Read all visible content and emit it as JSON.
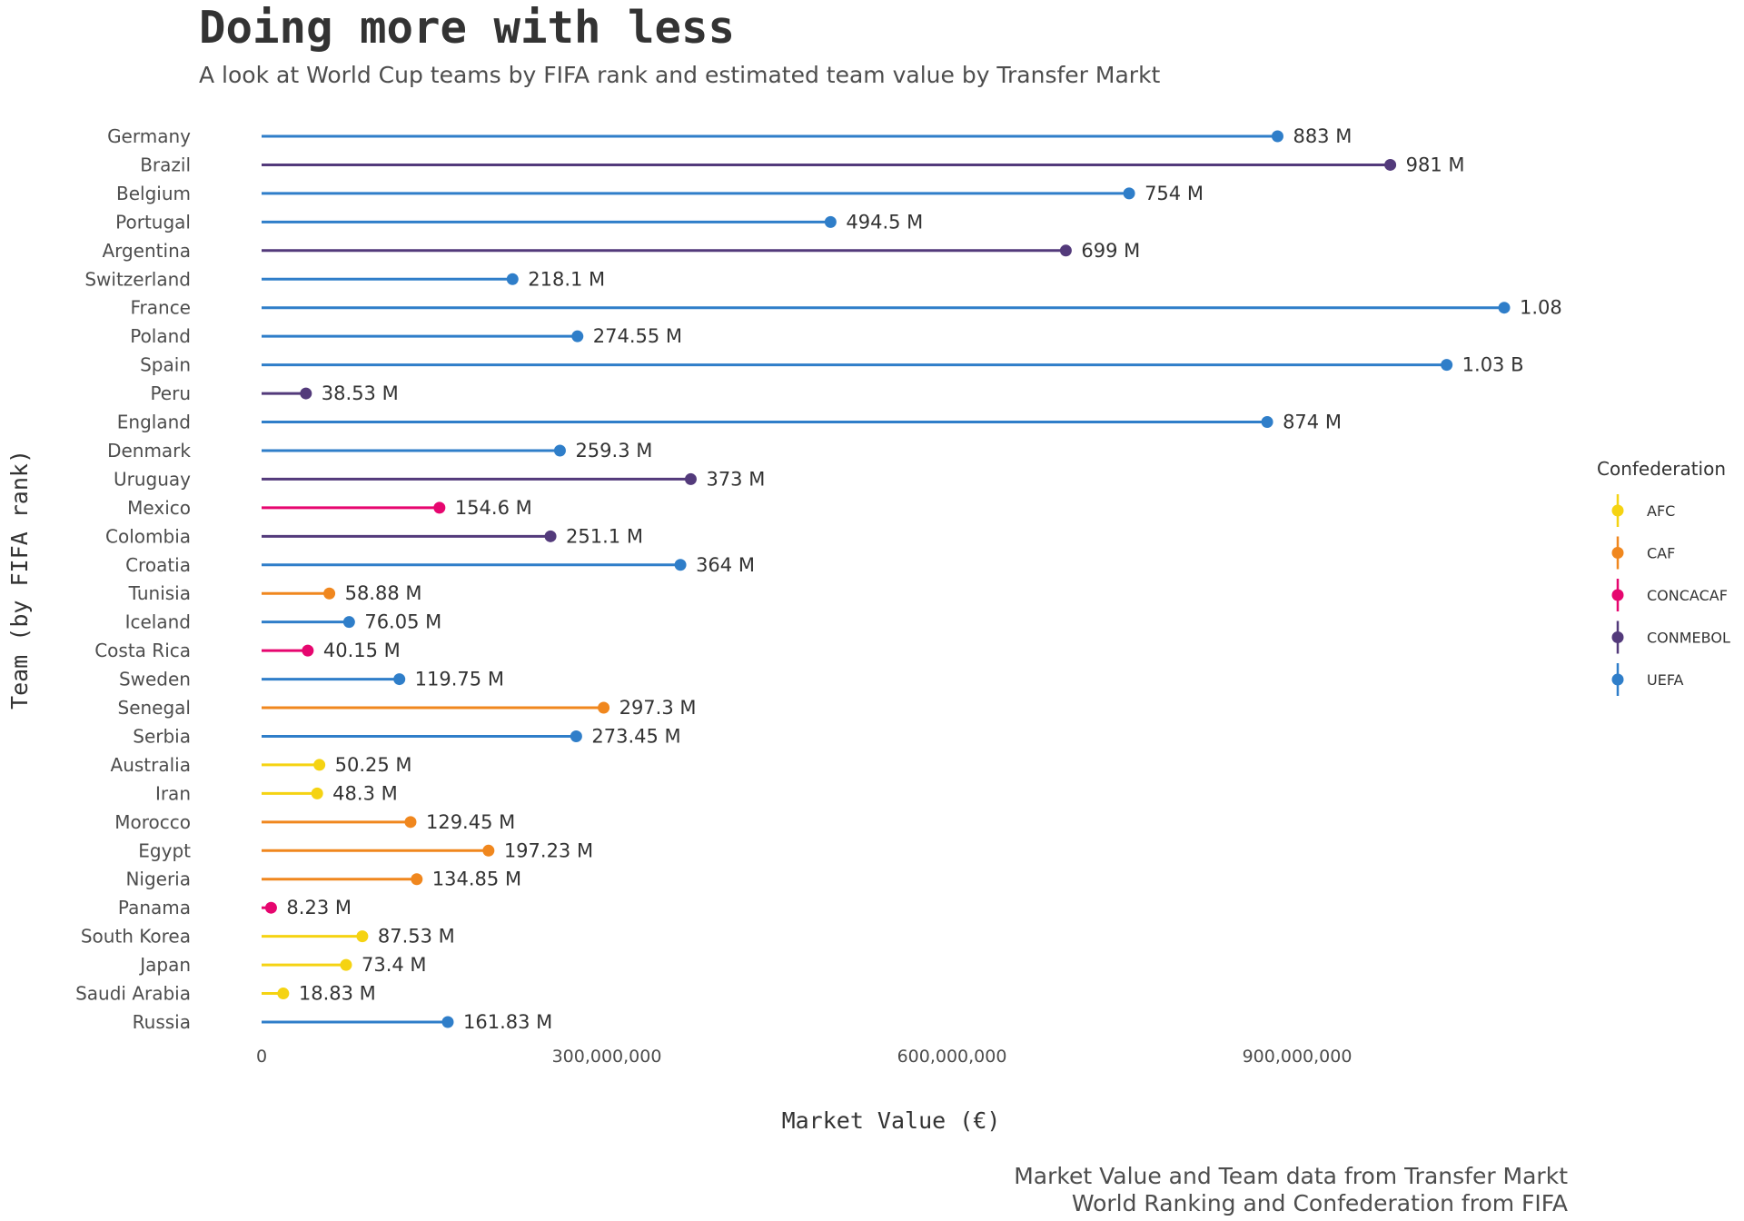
{
  "header": {
    "title": "Doing more with less",
    "subtitle": "A look at World Cup teams by FIFA rank and estimated team value by Transfer Markt"
  },
  "caption": {
    "line1": "Market Value and Team data from Transfer Markt",
    "line2": "World Ranking and Confederation from FIFA"
  },
  "colors": {
    "AFC": "#f5d312",
    "CAF": "#f0871e",
    "CONCACAF": "#e6066f",
    "CONMEBOL": "#533a7b",
    "UEFA": "#2f7ec9"
  },
  "chart_data": {
    "type": "lollipop",
    "xlabel": "Market Value (€)",
    "ylabel": "Team (by FIFA rank)",
    "xlim": [
      0,
      1080000000
    ],
    "xticks": [
      {
        "value": 0,
        "label": "0"
      },
      {
        "value": 300000000,
        "label": "300,000,000"
      },
      {
        "value": 600000000,
        "label": "600,000,000"
      },
      {
        "value": 900000000,
        "label": "900,000,000"
      }
    ],
    "legend": {
      "title": "Confederation",
      "position": "right",
      "entries": [
        "AFC",
        "CAF",
        "CONCACAF",
        "CONMEBOL",
        "UEFA"
      ]
    },
    "teams": [
      {
        "team": "Germany",
        "value": 883000000,
        "label": "883 M",
        "confederation": "UEFA"
      },
      {
        "team": "Brazil",
        "value": 981000000,
        "label": "981 M",
        "confederation": "CONMEBOL"
      },
      {
        "team": "Belgium",
        "value": 754000000,
        "label": "754 M",
        "confederation": "UEFA"
      },
      {
        "team": "Portugal",
        "value": 494500000,
        "label": "494.5 M",
        "confederation": "UEFA"
      },
      {
        "team": "Argentina",
        "value": 699000000,
        "label": "699 M",
        "confederation": "CONMEBOL"
      },
      {
        "team": "Switzerland",
        "value": 218100000,
        "label": "218.1 M",
        "confederation": "UEFA"
      },
      {
        "team": "France",
        "value": 1080000000,
        "label": "1.08",
        "confederation": "UEFA"
      },
      {
        "team": "Poland",
        "value": 274550000,
        "label": "274.55 M",
        "confederation": "UEFA"
      },
      {
        "team": "Spain",
        "value": 1030000000,
        "label": "1.03 B",
        "confederation": "UEFA"
      },
      {
        "team": "Peru",
        "value": 38530000,
        "label": "38.53 M",
        "confederation": "CONMEBOL"
      },
      {
        "team": "England",
        "value": 874000000,
        "label": "874 M",
        "confederation": "UEFA"
      },
      {
        "team": "Denmark",
        "value": 259300000,
        "label": "259.3 M",
        "confederation": "UEFA"
      },
      {
        "team": "Uruguay",
        "value": 373000000,
        "label": "373 M",
        "confederation": "CONMEBOL"
      },
      {
        "team": "Mexico",
        "value": 154600000,
        "label": "154.6 M",
        "confederation": "CONCACAF"
      },
      {
        "team": "Colombia",
        "value": 251100000,
        "label": "251.1 M",
        "confederation": "CONMEBOL"
      },
      {
        "team": "Croatia",
        "value": 364000000,
        "label": "364 M",
        "confederation": "UEFA"
      },
      {
        "team": "Tunisia",
        "value": 58880000,
        "label": "58.88 M",
        "confederation": "CAF"
      },
      {
        "team": "Iceland",
        "value": 76050000,
        "label": "76.05 M",
        "confederation": "UEFA"
      },
      {
        "team": "Costa Rica",
        "value": 40150000,
        "label": "40.15 M",
        "confederation": "CONCACAF"
      },
      {
        "team": "Sweden",
        "value": 119750000,
        "label": "119.75 M",
        "confederation": "UEFA"
      },
      {
        "team": "Senegal",
        "value": 297300000,
        "label": "297.3 M",
        "confederation": "CAF"
      },
      {
        "team": "Serbia",
        "value": 273450000,
        "label": "273.45 M",
        "confederation": "UEFA"
      },
      {
        "team": "Australia",
        "value": 50250000,
        "label": "50.25 M",
        "confederation": "AFC"
      },
      {
        "team": "Iran",
        "value": 48300000,
        "label": "48.3 M",
        "confederation": "AFC"
      },
      {
        "team": "Morocco",
        "value": 129450000,
        "label": "129.45 M",
        "confederation": "CAF"
      },
      {
        "team": "Egypt",
        "value": 197230000,
        "label": "197.23 M",
        "confederation": "CAF"
      },
      {
        "team": "Nigeria",
        "value": 134850000,
        "label": "134.85 M",
        "confederation": "CAF"
      },
      {
        "team": "Panama",
        "value": 8230000,
        "label": "8.23 M",
        "confederation": "CONCACAF"
      },
      {
        "team": "South Korea",
        "value": 87530000,
        "label": "87.53 M",
        "confederation": "AFC"
      },
      {
        "team": "Japan",
        "value": 73400000,
        "label": "73.4 M",
        "confederation": "AFC"
      },
      {
        "team": "Saudi Arabia",
        "value": 18830000,
        "label": "18.83 M",
        "confederation": "AFC"
      },
      {
        "team": "Russia",
        "value": 161830000,
        "label": "161.83 M",
        "confederation": "UEFA"
      }
    ]
  }
}
